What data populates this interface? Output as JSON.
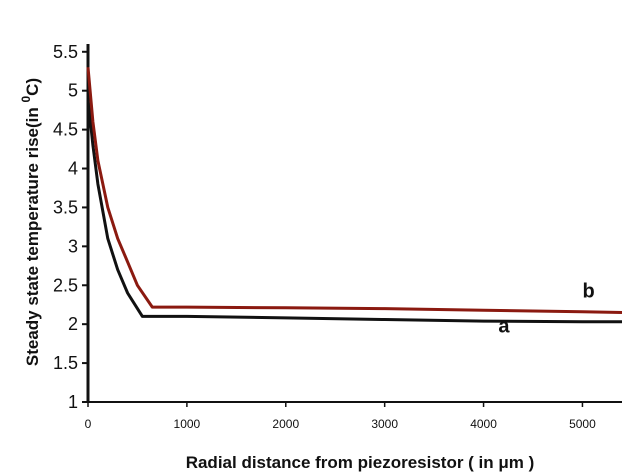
{
  "chart_data": {
    "type": "line",
    "title": "",
    "xlabel": "Radial distance from piezoresistor ( in  μm )",
    "ylabel": "Steady state temperature rise(in °C)",
    "ylabel_main": "Steady state temperature rise(in ",
    "ylabel_sup": "0",
    "ylabel_unit": "C)",
    "xlim": [
      0,
      5400
    ],
    "ylim": [
      1,
      5.6
    ],
    "x_ticks": [
      0,
      1000,
      2000,
      3000,
      4000,
      5000
    ],
    "x_tick_labels": [
      "0",
      "1000",
      "2000",
      "3000",
      "4000",
      "5000"
    ],
    "y_ticks": [
      1,
      1.5,
      2,
      2.5,
      3,
      3.5,
      4,
      4.5,
      5,
      5.5
    ],
    "y_tick_labels": [
      "1",
      "1.5",
      "2",
      "2.5",
      "3",
      "3.5",
      "4",
      "4.5",
      "5",
      "5.5"
    ],
    "grid": false,
    "series": [
      {
        "name": "a",
        "color": "#111111",
        "x": [
          0,
          50,
          100,
          200,
          300,
          400,
          550,
          1000,
          2000,
          3000,
          4000,
          5000,
          5400
        ],
        "y": [
          4.9,
          4.3,
          3.8,
          3.1,
          2.7,
          2.4,
          2.1,
          2.1,
          2.08,
          2.06,
          2.04,
          2.03,
          2.03
        ]
      },
      {
        "name": "b",
        "color": "#8b1a10",
        "x": [
          0,
          50,
          100,
          200,
          300,
          400,
          500,
          650,
          1000,
          2000,
          3000,
          4000,
          5000,
          5400
        ],
        "y": [
          5.3,
          4.6,
          4.1,
          3.5,
          3.1,
          2.8,
          2.5,
          2.22,
          2.22,
          2.21,
          2.2,
          2.18,
          2.16,
          2.15
        ]
      }
    ]
  }
}
